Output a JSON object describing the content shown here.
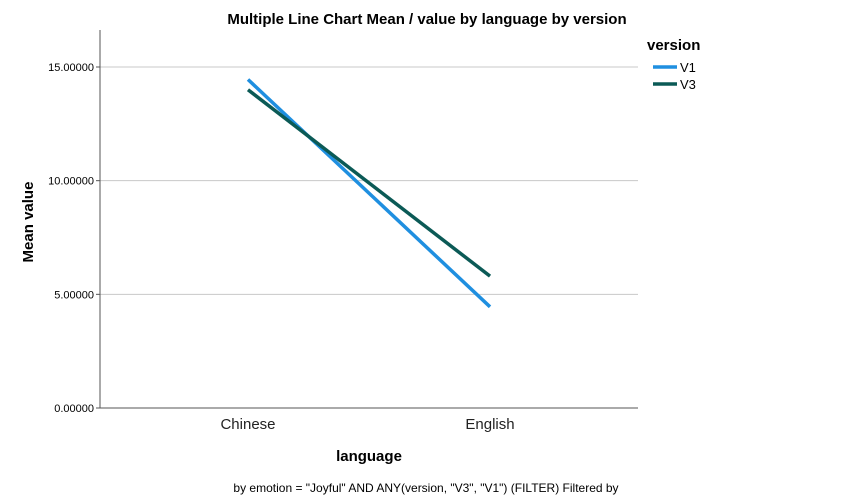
{
  "chart_data": {
    "type": "line",
    "title": "Multiple Line Chart Mean /  value by language by version",
    "xlabel": "language",
    "ylabel": "Mean value",
    "categories": [
      "Chinese",
      "English"
    ],
    "series": [
      {
        "name": "V1",
        "values": [
          14.45,
          4.45
        ],
        "color": "#1f8fe0"
      },
      {
        "name": "V3",
        "values": [
          14.0,
          5.8
        ],
        "color": "#0b5a56"
      }
    ],
    "ylim": [
      0,
      15.0
    ],
    "yticks": [
      {
        "value": 0,
        "label": "0.00000"
      },
      {
        "value": 5,
        "label": "5.00000"
      },
      {
        "value": 10,
        "label": "10.00000"
      },
      {
        "value": 15,
        "label": "15.00000"
      }
    ],
    "grid": true,
    "legend": {
      "title": "version",
      "position": "top-right"
    },
    "footnote": "by emotion = \"Joyful\" AND ANY(version, \"V3\", \"V1\") (FILTER) Filtered by"
  }
}
